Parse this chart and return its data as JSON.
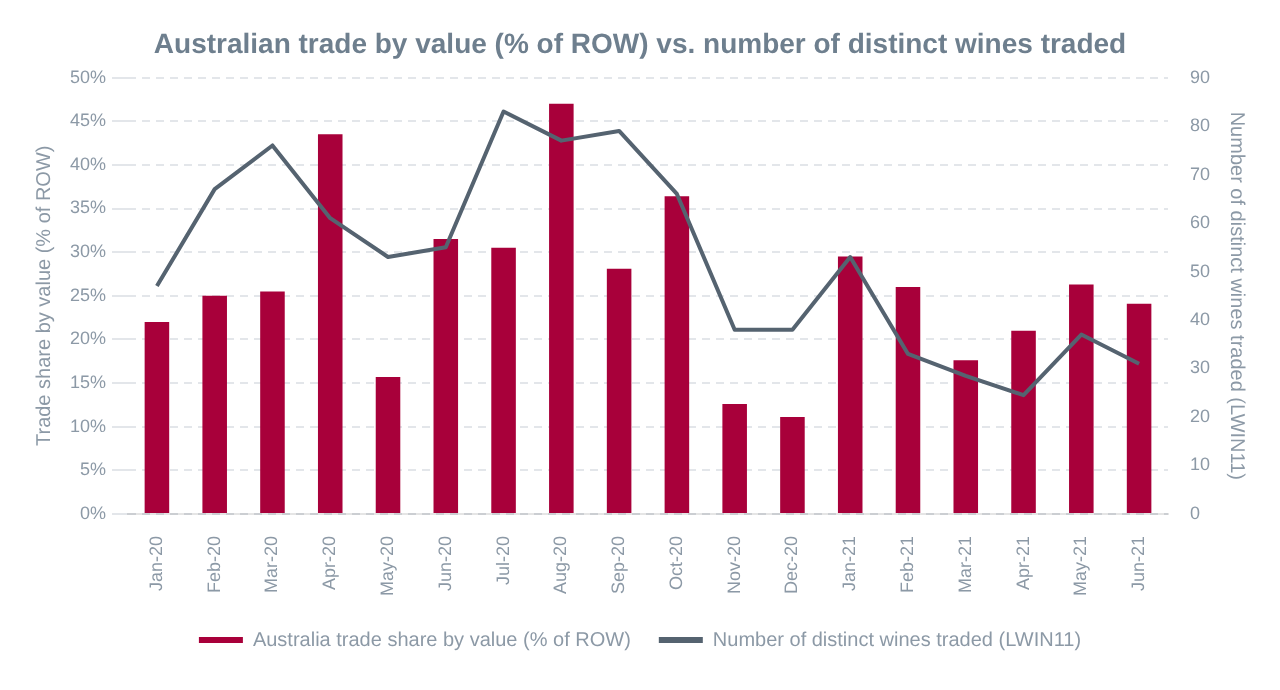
{
  "chart_data": {
    "type": "bar",
    "title": "Australian trade by value (% of ROW) vs. number of distinct wines traded",
    "categories": [
      "Jan-20",
      "Feb-20",
      "Mar-20",
      "Apr-20",
      "May-20",
      "Jun-20",
      "Jul-20",
      "Aug-20",
      "Sep-20",
      "Oct-20",
      "Nov-20",
      "Dec-20",
      "Jan-21",
      "Feb-21",
      "Mar-21",
      "Apr-21",
      "May-21",
      "Jun-21"
    ],
    "series": [
      {
        "name": "Australia trade share by value (% of ROW)",
        "color": "#a8003a",
        "values": [
          22,
          25,
          25.5,
          43.5,
          15.7,
          31.5,
          30.5,
          47,
          28.1,
          36.4,
          12.6,
          11.1,
          29.5,
          26,
          17.6,
          21,
          26.3,
          24.1
        ]
      },
      {
        "name": "Number of distinct wines traded (LWIN11)",
        "type": "line",
        "axis": "y2",
        "color": "#556370",
        "values": [
          47,
          67,
          76,
          61,
          53,
          55,
          83,
          77,
          79,
          66,
          38,
          38,
          53,
          33,
          28.5,
          24.5,
          37,
          31
        ]
      }
    ],
    "ylabel": "Trade share by value (% of ROW)",
    "y2label": "Number of distinct wines traded (LWIN11)",
    "ylim": [
      0,
      50
    ],
    "yticks": [
      {
        "value": 0,
        "label": "0%"
      },
      {
        "value": 5,
        "label": "5%"
      },
      {
        "value": 10,
        "label": "10%"
      },
      {
        "value": 15,
        "label": "15%"
      },
      {
        "value": 20,
        "label": "20%"
      },
      {
        "value": 25,
        "label": "25%"
      },
      {
        "value": 30,
        "label": "30%"
      },
      {
        "value": 35,
        "label": "35%"
      },
      {
        "value": 40,
        "label": "40%"
      },
      {
        "value": 45,
        "label": "45%"
      },
      {
        "value": 50,
        "label": "50%"
      }
    ],
    "y2lim": [
      0,
      90
    ],
    "y2ticks": [
      0,
      10,
      20,
      30,
      40,
      50,
      60,
      70,
      80,
      90
    ],
    "grid": "y",
    "legend": "bottom",
    "marker": "none",
    "line_style": "solid"
  }
}
